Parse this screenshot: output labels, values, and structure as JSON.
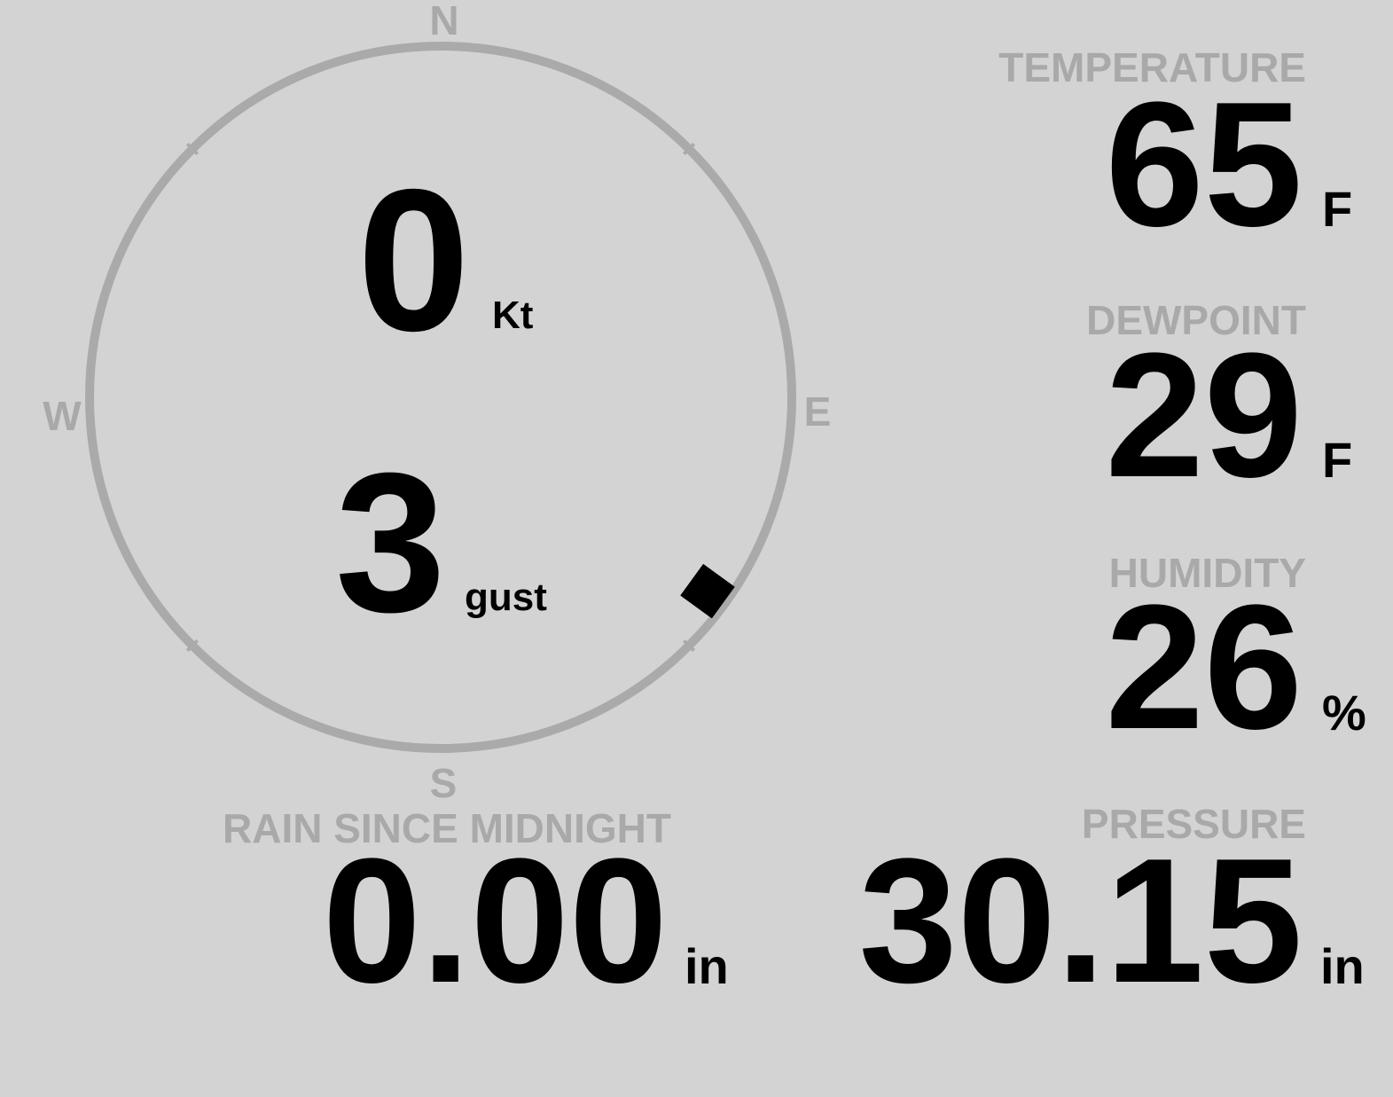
{
  "colors": {
    "background": "#d3d3d3",
    "label": "#a9a9a9",
    "value": "#000000",
    "compass_ring": "#aaaaaa"
  },
  "compass": {
    "north": "N",
    "east": "E",
    "south": "S",
    "west": "W",
    "wind_direction_deg": 126,
    "wind_speed": "0",
    "wind_speed_unit": "Kt",
    "gust": "3",
    "gust_unit": "gust"
  },
  "temperature": {
    "label": "TEMPERATURE",
    "value": "65",
    "unit": "F"
  },
  "dewpoint": {
    "label": "DEWPOINT",
    "value": "29",
    "unit": "F"
  },
  "humidity": {
    "label": "HUMIDITY",
    "value": "26",
    "unit": "%"
  },
  "rain": {
    "label": "RAIN SINCE MIDNIGHT",
    "value": "0.00",
    "unit": "in"
  },
  "pressure": {
    "label": "PRESSURE",
    "value": "30.15",
    "unit": "in"
  }
}
